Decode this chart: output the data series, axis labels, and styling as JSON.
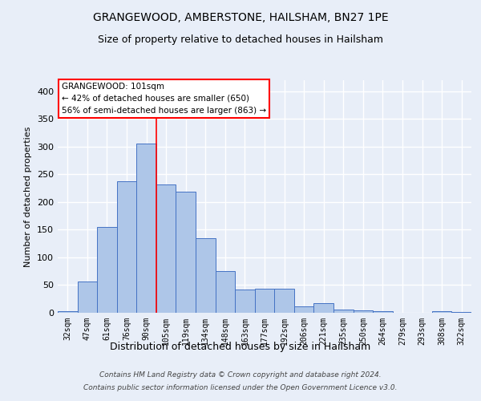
{
  "title": "GRANGEWOOD, AMBERSTONE, HAILSHAM, BN27 1PE",
  "subtitle": "Size of property relative to detached houses in Hailsham",
  "xlabel": "Distribution of detached houses by size in Hailsham",
  "ylabel": "Number of detached properties",
  "categories": [
    "32sqm",
    "47sqm",
    "61sqm",
    "76sqm",
    "90sqm",
    "105sqm",
    "119sqm",
    "134sqm",
    "148sqm",
    "163sqm",
    "177sqm",
    "192sqm",
    "206sqm",
    "221sqm",
    "235sqm",
    "250sqm",
    "264sqm",
    "279sqm",
    "293sqm",
    "308sqm",
    "322sqm"
  ],
  "values": [
    3,
    57,
    155,
    237,
    305,
    232,
    219,
    134,
    76,
    42,
    43,
    43,
    12,
    17,
    6,
    4,
    3,
    0,
    0,
    3,
    2
  ],
  "bar_color": "#aec6e8",
  "bar_edge_color": "#4472c4",
  "vline_x_index": 4,
  "vline_color": "red",
  "annotation_text": "GRANGEWOOD: 101sqm\n← 42% of detached houses are smaller (650)\n56% of semi-detached houses are larger (863) →",
  "annotation_box_color": "white",
  "annotation_box_edge": "red",
  "ylim": [
    0,
    420
  ],
  "yticks": [
    0,
    50,
    100,
    150,
    200,
    250,
    300,
    350,
    400
  ],
  "bg_color": "#e8eef8",
  "grid_color": "#ffffff",
  "footnote1": "Contains HM Land Registry data © Crown copyright and database right 2024.",
  "footnote2": "Contains public sector information licensed under the Open Government Licence v3.0."
}
